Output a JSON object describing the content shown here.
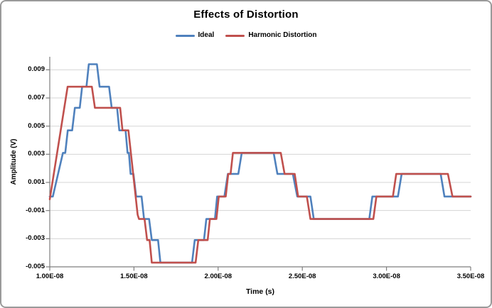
{
  "chart": {
    "title": "Effects of Distortion",
    "legend": {
      "items": [
        {
          "name": "Ideal",
          "color": "#4F81BD"
        },
        {
          "name": "Harmonic Distortion",
          "color": "#C0504D"
        }
      ]
    },
    "x_axis": {
      "title": "Time (s)"
    },
    "y_axis": {
      "title": "Amplitude (V)"
    }
  },
  "chart_data": {
    "type": "line",
    "title": "Effects of Distortion",
    "xlabel": "Time (s)",
    "ylabel": "Amplitude (V)",
    "x_units": "seconds, point x-values are in units of 1e-8 s",
    "xlim": [
      1.0,
      3.5
    ],
    "ylim": [
      -0.005,
      0.009
    ],
    "grid": true,
    "legend_position": "top-center",
    "x_tick_values": [
      1.0,
      1.5,
      2.0,
      2.5,
      3.0,
      3.5
    ],
    "x_tick_labels": [
      "1.00E-08",
      "1.50E-08",
      "2.00E-08",
      "2.50E-08",
      "3.00E-08",
      "3.50E-08"
    ],
    "y_tick_values": [
      0.009,
      0.007,
      0.005,
      0.003,
      0.001,
      -0.001,
      -0.003,
      -0.005
    ],
    "y_tick_labels": [
      "0.009",
      "0.007",
      "0.005",
      "0.003",
      "0.001",
      "-0.001",
      "-0.003",
      "-0.005"
    ],
    "quantization_levels_v": [
      0.0094,
      0.0078,
      0.0063,
      0.0047,
      0.0031,
      0.0016,
      0.0,
      -0.0016,
      -0.0031,
      -0.0047
    ],
    "series": [
      {
        "name": "Ideal",
        "color": "#4F81BD",
        "points": [
          [
            1.0,
            0.0
          ],
          [
            1.018,
            0.0
          ],
          [
            1.078,
            0.0031
          ],
          [
            1.092,
            0.0031
          ],
          [
            1.107,
            0.0047
          ],
          [
            1.133,
            0.0047
          ],
          [
            1.149,
            0.0063
          ],
          [
            1.178,
            0.0063
          ],
          [
            1.192,
            0.0078
          ],
          [
            1.218,
            0.0078
          ],
          [
            1.232,
            0.0094
          ],
          [
            1.28,
            0.0094
          ],
          [
            1.296,
            0.0078
          ],
          [
            1.352,
            0.0078
          ],
          [
            1.368,
            0.0063
          ],
          [
            1.4,
            0.0063
          ],
          [
            1.413,
            0.0047
          ],
          [
            1.45,
            0.0047
          ],
          [
            1.462,
            0.0031
          ],
          [
            1.47,
            0.0031
          ],
          [
            1.48,
            0.0016
          ],
          [
            1.497,
            0.0016
          ],
          [
            1.513,
            0.0
          ],
          [
            1.545,
            0.0
          ],
          [
            1.56,
            -0.0016
          ],
          [
            1.59,
            -0.0016
          ],
          [
            1.606,
            -0.0031
          ],
          [
            1.643,
            -0.0031
          ],
          [
            1.657,
            -0.0047
          ],
          [
            1.845,
            -0.0047
          ],
          [
            1.861,
            -0.0031
          ],
          [
            1.916,
            -0.0031
          ],
          [
            1.93,
            -0.0016
          ],
          [
            1.981,
            -0.0016
          ],
          [
            1.994,
            0.0
          ],
          [
            2.037,
            0.0
          ],
          [
            2.058,
            0.0016
          ],
          [
            2.12,
            0.0016
          ],
          [
            2.14,
            0.0031
          ],
          [
            2.33,
            0.0031
          ],
          [
            2.352,
            0.0016
          ],
          [
            2.444,
            0.0016
          ],
          [
            2.47,
            0.0
          ],
          [
            2.548,
            0.0
          ],
          [
            2.568,
            -0.0016
          ],
          [
            2.898,
            -0.0016
          ],
          [
            2.916,
            0.0
          ],
          [
            3.068,
            0.0
          ],
          [
            3.09,
            0.0016
          ],
          [
            3.322,
            0.0016
          ],
          [
            3.344,
            0.0
          ],
          [
            3.5,
            0.0
          ]
        ]
      },
      {
        "name": "Harmonic Distortion",
        "color": "#C0504D",
        "points": [
          [
            1.0,
            -0.0002
          ],
          [
            1.106,
            0.0078
          ],
          [
            1.25,
            0.0078
          ],
          [
            1.268,
            0.0063
          ],
          [
            1.418,
            0.0063
          ],
          [
            1.432,
            0.0047
          ],
          [
            1.467,
            0.0047
          ],
          [
            1.522,
            -0.0013
          ],
          [
            1.53,
            -0.0016
          ],
          [
            1.563,
            -0.0016
          ],
          [
            1.578,
            -0.0031
          ],
          [
            1.593,
            -0.0031
          ],
          [
            1.606,
            -0.0047
          ],
          [
            1.866,
            -0.0047
          ],
          [
            1.882,
            -0.0031
          ],
          [
            1.938,
            -0.0031
          ],
          [
            1.951,
            -0.0016
          ],
          [
            1.99,
            -0.0016
          ],
          [
            2.004,
            0.0
          ],
          [
            2.045,
            0.0
          ],
          [
            2.06,
            0.0016
          ],
          [
            2.074,
            0.0016
          ],
          [
            2.088,
            0.0031
          ],
          [
            2.372,
            0.0031
          ],
          [
            2.395,
            0.0016
          ],
          [
            2.455,
            0.0016
          ],
          [
            2.475,
            0.0
          ],
          [
            2.527,
            0.0
          ],
          [
            2.548,
            -0.0016
          ],
          [
            2.922,
            -0.0016
          ],
          [
            2.94,
            0.0
          ],
          [
            3.038,
            0.0
          ],
          [
            3.058,
            0.0016
          ],
          [
            3.365,
            0.0016
          ],
          [
            3.392,
            0.0
          ],
          [
            3.5,
            0.0
          ]
        ]
      }
    ],
    "style": {
      "gridline_color": "#D5D5D5",
      "axis_color": "#7F7F7F",
      "line_width": 2.6
    }
  }
}
